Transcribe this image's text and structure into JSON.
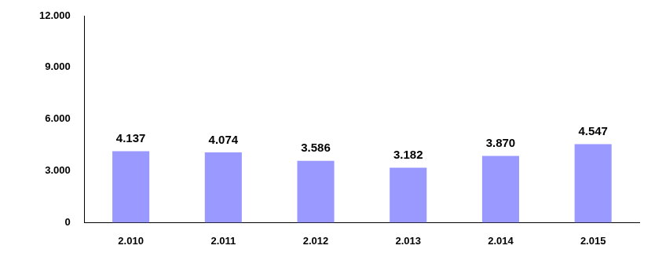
{
  "chart_data": {
    "type": "bar",
    "categories": [
      "2.010",
      "2.011",
      "2.012",
      "2.013",
      "2.014",
      "2.015"
    ],
    "values": [
      4137,
      4074,
      3586,
      3182,
      3870,
      4547
    ],
    "value_labels": [
      "4.137",
      "4.074",
      "3.586",
      "3.182",
      "3.870",
      "4.547"
    ],
    "color": "#9999ff",
    "ylim": [
      0,
      12000
    ],
    "yticks": [
      0,
      {
        "value": 3000,
        "label": "3.000"
      },
      {
        "value": 6000,
        "label": "6.000"
      },
      {
        "value": 9000,
        "label": "9.000"
      },
      {
        "value": 12000,
        "label": "12.000"
      }
    ],
    "grid": false,
    "data_labels": true
  }
}
